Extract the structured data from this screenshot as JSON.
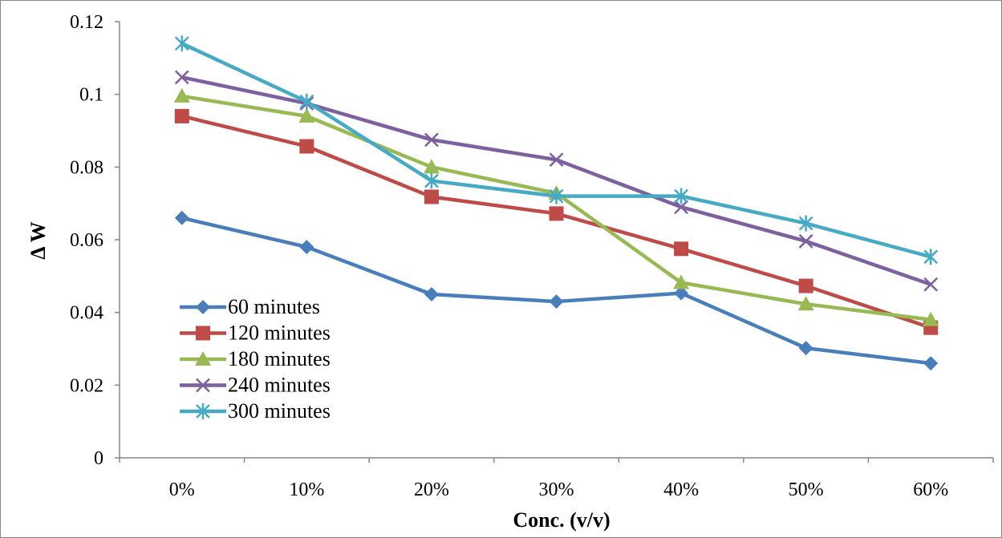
{
  "chart_data": {
    "type": "line",
    "categories": [
      "0%",
      "10%",
      "20%",
      "30%",
      "40%",
      "50%",
      "60%"
    ],
    "series": [
      {
        "name": "60 minutes",
        "color": "#4a7ebb",
        "marker": "diamond",
        "values": [
          0.066,
          0.058,
          0.045,
          0.043,
          0.0453,
          0.0302,
          0.026
        ]
      },
      {
        "name": "120 minutes",
        "color": "#be4b48",
        "marker": "square",
        "values": [
          0.094,
          0.0857,
          0.0718,
          0.0672,
          0.0575,
          0.0473,
          0.0358
        ]
      },
      {
        "name": "180 minutes",
        "color": "#98b954",
        "marker": "triangle",
        "values": [
          0.0995,
          0.094,
          0.08,
          0.0728,
          0.0482,
          0.0423,
          0.038
        ]
      },
      {
        "name": "240 minutes",
        "color": "#7d60a0",
        "marker": "x",
        "values": [
          0.1047,
          0.0975,
          0.0875,
          0.082,
          0.069,
          0.0596,
          0.0477
        ]
      },
      {
        "name": "300 minutes",
        "color": "#46aac5",
        "marker": "star",
        "values": [
          0.114,
          0.098,
          0.0762,
          0.072,
          0.072,
          0.0645,
          0.0553
        ]
      }
    ],
    "xlabel": "Conc. (v/v)",
    "ylabel": "Δ W",
    "ylim": [
      0,
      0.12
    ],
    "yticks": [
      "0",
      "0.02",
      "0.04",
      "0.06",
      "0.08",
      "0.1",
      "0.12"
    ],
    "grid": false,
    "legend_position": "bottom-left"
  }
}
